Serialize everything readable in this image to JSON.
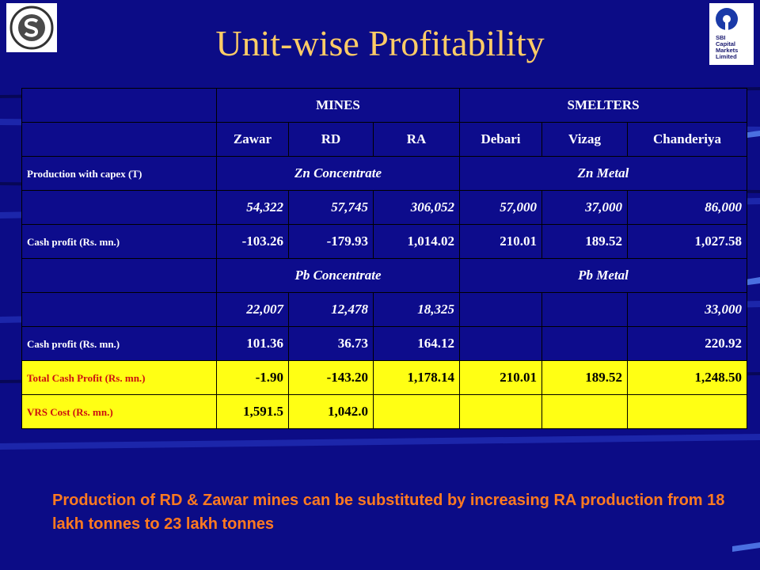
{
  "slide": {
    "title": "Unit-wise Profitability",
    "logo_right_text": [
      "SBI",
      "Capital",
      "Markets",
      "Limited"
    ],
    "footnote": "Production of RD & Zawar mines can be substituted by increasing RA production from 18 lakh tonnes to 23 lakh tonnes"
  },
  "table": {
    "group_headers": {
      "mines": "MINES",
      "smelters": "SMELTERS"
    },
    "units": [
      "Zawar",
      "RD",
      "RA",
      "Debari",
      "Vizag",
      "Chanderiya"
    ],
    "rows": {
      "production_label": "Production with capex (T)",
      "zn_concentrate": "Zn Concentrate",
      "zn_metal": "Zn Metal",
      "zn_values": [
        "54,322",
        "57,745",
        "306,052",
        "57,000",
        "37,000",
        "86,000"
      ],
      "zn_cash_label": "Cash profit (Rs. mn.)",
      "zn_cash_values": [
        "-103.26",
        "-179.93",
        "1,014.02",
        "210.01",
        "189.52",
        "1,027.58"
      ],
      "pb_concentrate": "Pb Concentrate",
      "pb_metal": "Pb Metal",
      "pb_values": [
        "22,007",
        "12,478",
        "18,325",
        "",
        "",
        "33,000"
      ],
      "pb_cash_label": "Cash profit (Rs. mn.)",
      "pb_cash_values": [
        "101.36",
        "36.73",
        "164.12",
        "",
        "",
        "220.92"
      ],
      "total_label": "Total Cash Profit (Rs. mn.)",
      "total_values": [
        "-1.90",
        "-143.20",
        "1,178.14",
        "210.01",
        "189.52",
        "1,248.50"
      ],
      "vrs_label": "VRS Cost (Rs. mn.)",
      "vrs_values": [
        "1,591.5",
        "1,042.0",
        "",
        "",
        "",
        ""
      ]
    }
  },
  "colors": {
    "background": "#0c0c86",
    "title": "#ffcc66",
    "highlight": "#ffff14",
    "highlight_label": "#cc1010",
    "footnote": "#ff7a20"
  }
}
